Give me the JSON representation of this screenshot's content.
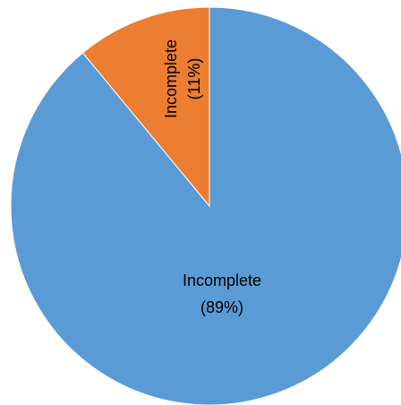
{
  "chart_data": {
    "type": "pie",
    "slices": [
      {
        "label": "Incomplete",
        "value": 89,
        "pct_label": "(89%)",
        "color": "#5B9BD5"
      },
      {
        "label": "Incomplete",
        "value": 11,
        "pct_label": "(11%)",
        "color": "#ED7D31"
      }
    ]
  }
}
